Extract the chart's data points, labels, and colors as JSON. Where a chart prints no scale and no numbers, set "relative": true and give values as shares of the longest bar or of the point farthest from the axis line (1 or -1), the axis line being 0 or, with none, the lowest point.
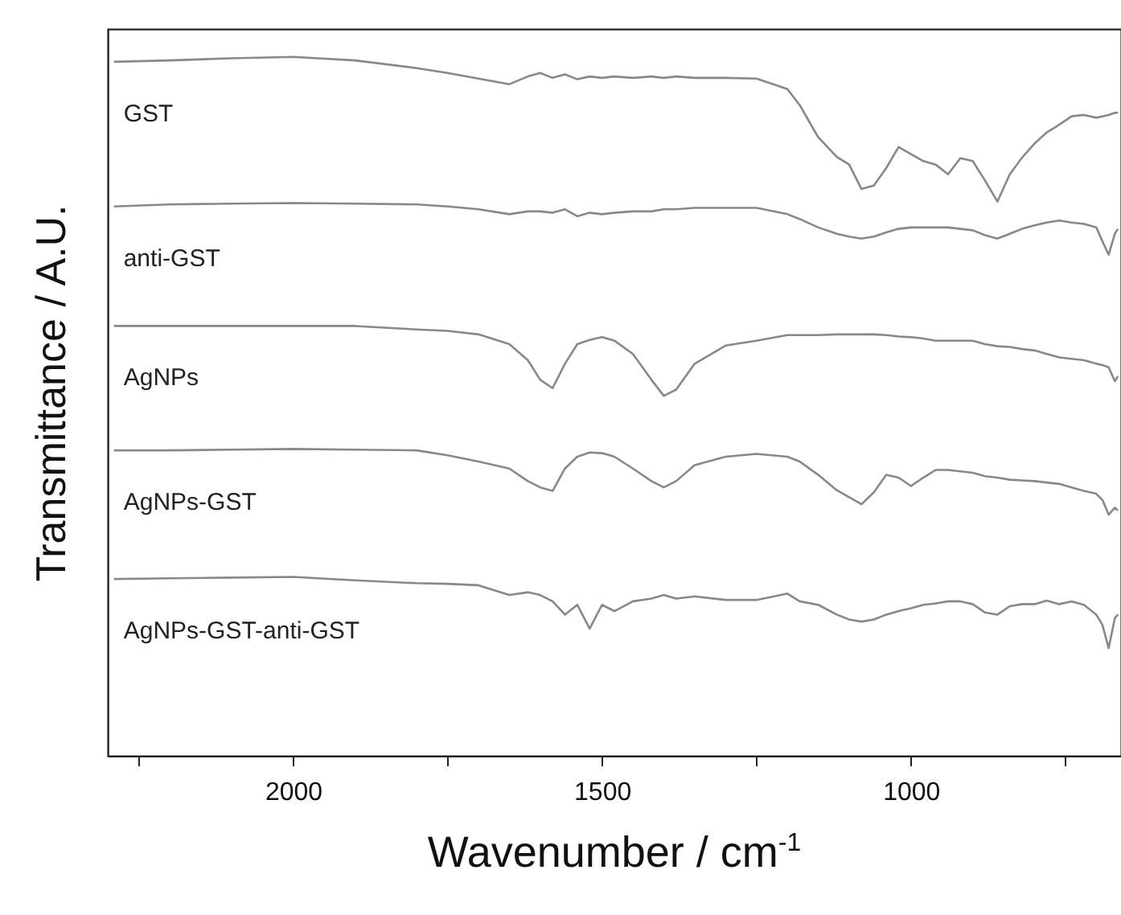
{
  "chart_data": {
    "type": "line",
    "xlabel": "Wavenumber / cm$^{-1}$",
    "ylabel": "Transmittance / A.U.",
    "relative": true,
    "xlim": [
      2300,
      660
    ],
    "xticks": [
      {
        "value": 2250,
        "label": null
      },
      2000,
      {
        "value": 1750,
        "label": null
      },
      1500,
      {
        "value": 1250,
        "label": null
      },
      1000,
      {
        "value": 750,
        "label": null
      }
    ],
    "tick_labels": "x",
    "grid": false,
    "legend": false,
    "marker": "none",
    "line_style": "solid",
    "x": [
      2290,
      2200,
      2100,
      2000,
      1900,
      1800,
      1750,
      1700,
      1650,
      1620,
      1600,
      1580,
      1560,
      1540,
      1520,
      1500,
      1480,
      1450,
      1420,
      1400,
      1380,
      1350,
      1300,
      1250,
      1200,
      1180,
      1150,
      1120,
      1100,
      1080,
      1060,
      1040,
      1020,
      1000,
      980,
      960,
      940,
      920,
      900,
      880,
      860,
      840,
      820,
      800,
      780,
      760,
      740,
      720,
      700,
      690,
      680,
      670,
      665
    ],
    "series": [
      {
        "name": "GST",
        "color": "#888888",
        "values": [
          0.993,
          0.995,
          0.998,
          1,
          0.995,
          0.984,
          0.977,
          0.969,
          0.961,
          0.972,
          0.977,
          0.97,
          0.975,
          0.968,
          0.972,
          0.97,
          0.972,
          0.97,
          0.972,
          0.97,
          0.972,
          0.97,
          0.97,
          0.969,
          0.954,
          0.931,
          0.885,
          0.857,
          0.846,
          0.811,
          0.816,
          0.841,
          0.871,
          0.861,
          0.851,
          0.846,
          0.832,
          0.855,
          0.851,
          0.823,
          0.793,
          0.832,
          0.856,
          0.876,
          0.892,
          0.903,
          0.915,
          0.917,
          0.913,
          0.915,
          0.917,
          0.92,
          0.92
        ]
      },
      {
        "name": "anti-GST",
        "color": "#888888",
        "values": [
          0.786,
          0.789,
          0.79,
          0.791,
          0.79,
          0.789,
          0.786,
          0.782,
          0.775,
          0.779,
          0.779,
          0.777,
          0.782,
          0.772,
          0.777,
          0.775,
          0.777,
          0.779,
          0.779,
          0.782,
          0.782,
          0.784,
          0.784,
          0.784,
          0.775,
          0.768,
          0.756,
          0.747,
          0.743,
          0.74,
          0.743,
          0.749,
          0.754,
          0.756,
          0.756,
          0.756,
          0.756,
          0.754,
          0.752,
          0.745,
          0.74,
          0.747,
          0.754,
          0.759,
          0.763,
          0.766,
          0.763,
          0.761,
          0.756,
          0.736,
          0.717,
          0.747,
          0.754
        ]
      },
      {
        "name": "AgNPs",
        "color": "#888888",
        "values": [
          0.615,
          0.615,
          0.615,
          0.615,
          0.615,
          0.61,
          0.608,
          0.603,
          0.589,
          0.566,
          0.538,
          0.526,
          0.561,
          0.589,
          0.595,
          0.599,
          0.594,
          0.575,
          0.538,
          0.515,
          0.524,
          0.561,
          0.587,
          0.594,
          0.602,
          0.602,
          0.602,
          0.603,
          0.603,
          0.603,
          0.603,
          0.602,
          0.6,
          0.599,
          0.597,
          0.594,
          0.594,
          0.594,
          0.594,
          0.589,
          0.586,
          0.585,
          0.582,
          0.58,
          0.575,
          0.57,
          0.568,
          0.566,
          0.561,
          0.559,
          0.556,
          0.536,
          0.543
        ]
      },
      {
        "name": "AgNPs-GST",
        "color": "#888888",
        "values": [
          0.437,
          0.437,
          0.438,
          0.439,
          0.438,
          0.437,
          0.43,
          0.421,
          0.411,
          0.393,
          0.384,
          0.379,
          0.411,
          0.428,
          0.434,
          0.433,
          0.428,
          0.411,
          0.393,
          0.384,
          0.393,
          0.416,
          0.428,
          0.432,
          0.428,
          0.421,
          0.402,
          0.38,
          0.37,
          0.36,
          0.377,
          0.402,
          0.398,
          0.386,
          0.398,
          0.409,
          0.409,
          0.407,
          0.405,
          0.4,
          0.398,
          0.395,
          0.394,
          0.393,
          0.391,
          0.389,
          0.384,
          0.379,
          0.375,
          0.366,
          0.345,
          0.355,
          0.351
        ]
      },
      {
        "name": "AgNPs-GST-anti-GST",
        "color": "#888888",
        "values": [
          0.253,
          0.254,
          0.255,
          0.256,
          0.251,
          0.247,
          0.246,
          0.244,
          0.23,
          0.234,
          0.23,
          0.221,
          0.202,
          0.216,
          0.182,
          0.216,
          0.207,
          0.221,
          0.225,
          0.23,
          0.225,
          0.228,
          0.223,
          0.223,
          0.232,
          0.221,
          0.216,
          0.202,
          0.195,
          0.192,
          0.195,
          0.202,
          0.207,
          0.211,
          0.216,
          0.218,
          0.221,
          0.221,
          0.217,
          0.205,
          0.202,
          0.214,
          0.217,
          0.217,
          0.222,
          0.217,
          0.221,
          0.216,
          0.202,
          0.187,
          0.154,
          0.197,
          0.202
        ]
      }
    ]
  }
}
